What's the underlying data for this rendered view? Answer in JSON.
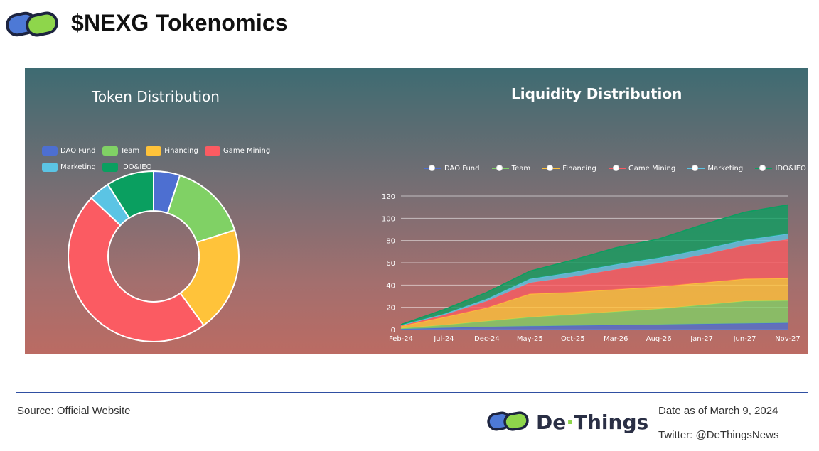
{
  "header": {
    "title": "$NEXG Tokenomics"
  },
  "colors": {
    "dao": "#4d6fd1",
    "team": "#80d165",
    "financing": "#ffc33a",
    "game": "#fb5b62",
    "marketing": "#5bc4e4",
    "ido": "#0a9f60"
  },
  "chart_data": [
    {
      "type": "pie",
      "title": "Token Distribution",
      "donut": true,
      "legend_position": "top-left",
      "labels": [
        "DAO Fund",
        "Team",
        "Financing",
        "Game Mining",
        "Marketing",
        "IDO&IEO"
      ],
      "values": [
        5,
        15,
        20,
        47,
        4,
        9
      ]
    },
    {
      "type": "area",
      "stacked": true,
      "title": "Liquidity Distribution",
      "legend_position": "top",
      "grid": true,
      "ylim": [
        0,
        120
      ],
      "yticks": [
        0,
        20,
        40,
        60,
        80,
        100,
        120
      ],
      "x": [
        "Feb-24",
        "Jul-24",
        "Dec-24",
        "May-25",
        "Oct-25",
        "Mar-26",
        "Aug-26",
        "Jan-27",
        "Jun-27",
        "Nov-27"
      ],
      "series": [
        {
          "name": "DAO Fund",
          "values": [
            0.5,
            1.5,
            2.5,
            3,
            3.5,
            4,
            4.5,
            5,
            5.5,
            6
          ]
        },
        {
          "name": "Team",
          "values": [
            0.5,
            2.5,
            5,
            8,
            10,
            12,
            14,
            17,
            20,
            20
          ]
        },
        {
          "name": "Financing",
          "values": [
            2,
            7,
            12,
            21,
            20,
            20,
            20,
            20,
            20,
            20
          ]
        },
        {
          "name": "Game Mining",
          "values": [
            0.5,
            2,
            6,
            10,
            14,
            18,
            21,
            25,
            30,
            35
          ]
        },
        {
          "name": "Marketing",
          "values": [
            0.5,
            1,
            2,
            3.5,
            4,
            4.5,
            5,
            5,
            5,
            5
          ]
        },
        {
          "name": "IDO&IEO",
          "values": [
            0.5,
            4,
            6,
            7,
            11,
            15,
            17,
            22,
            25,
            26
          ]
        }
      ]
    }
  ],
  "footer": {
    "source": "Source: Official Website",
    "brand_pre": "De",
    "brand_dot": "·",
    "brand_post": "Things",
    "date": "Date as of March 9, 2024",
    "twitter": "Twitter: @DeThingsNews"
  }
}
